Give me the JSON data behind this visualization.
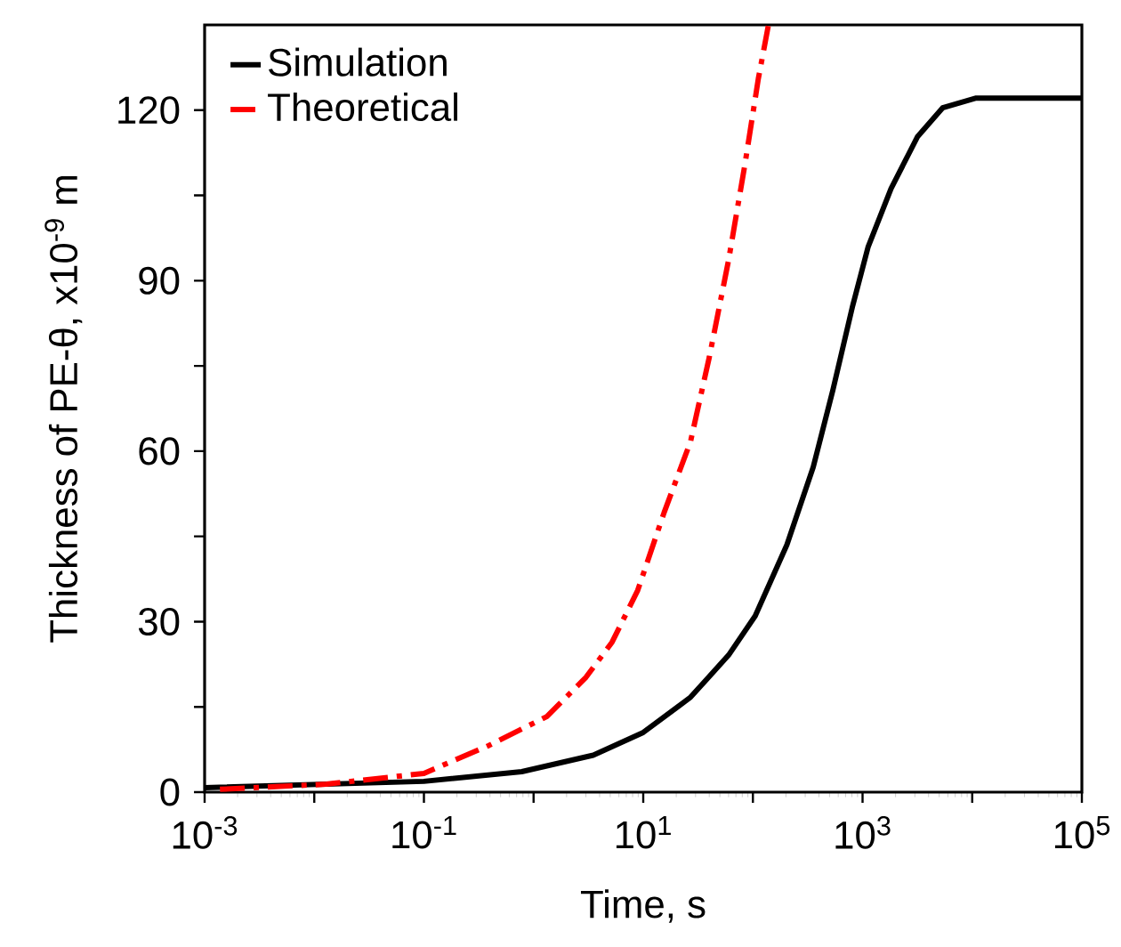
{
  "chart_data": {
    "type": "line",
    "xlabel": "Time, s",
    "ylabel": "Thickness of PE-θ,  x10$^{-9}$ m",
    "log": "x",
    "legend": "top left",
    "grid": false,
    "xlim": [
      0.001,
      100000
    ],
    "ylim": [
      0,
      135
    ],
    "xticks": [
      {
        "value": 0.001,
        "label": "10$^{-3}$"
      },
      {
        "value": 0.01,
        "label": null
      },
      {
        "value": 0.1,
        "label": "10$^{-1}$"
      },
      {
        "value": 1,
        "label": null
      },
      {
        "value": 10,
        "label": "10$^{1}$"
      },
      {
        "value": 100,
        "label": null
      },
      {
        "value": 1000,
        "label": "10$^{3}$"
      },
      {
        "value": 10000,
        "label": null
      },
      {
        "value": 100000,
        "label": "10$^{5}$"
      }
    ],
    "yticks": [
      0,
      {
        "value": 15,
        "label": null
      },
      30,
      {
        "value": 45,
        "label": null
      },
      60,
      {
        "value": 75,
        "label": null
      },
      90,
      {
        "value": 105,
        "label": null
      },
      120
    ],
    "series": [
      {
        "name": "Simulation",
        "color": "#000000",
        "line_style": "solid",
        "x": [
          0.001,
          0.1,
          0.78,
          3.5,
          10,
          27,
          60,
          105,
          204,
          355,
          537,
          813,
          1122,
          1820,
          3162,
          5370,
          10700,
          100000
        ],
        "values": [
          0.8,
          1.9,
          3.6,
          6.5,
          10.5,
          16.7,
          24.1,
          31,
          43.5,
          57.2,
          70.8,
          85.6,
          95.9,
          106.2,
          115.3,
          120.4,
          122.1,
          122.1
        ]
      },
      {
        "name": "Theoretical",
        "color": "#ff0000",
        "line_style": "dashdot",
        "x": [
          0.00138,
          0.0129,
          0.1,
          0.39,
          1.32,
          3.0,
          5.2,
          8.9,
          15.5,
          27,
          40,
          60,
          85,
          112,
          138
        ],
        "values": [
          0.5,
          1.4,
          3.3,
          8.2,
          13.3,
          20.2,
          26.4,
          35.5,
          49.2,
          61.7,
          76.5,
          93.6,
          110.7,
          125.5,
          134.8
        ]
      }
    ]
  }
}
